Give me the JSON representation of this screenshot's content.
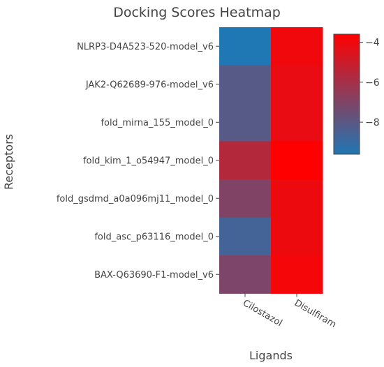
{
  "chart_data": {
    "type": "heatmap",
    "title": "Docking Scores Heatmap",
    "xlabel": "Ligands",
    "ylabel": "Receptors",
    "x": [
      "Cilostazol",
      "Disulfiram"
    ],
    "y": [
      "NLRP3-D4A523-520-model_v6",
      "JAK2-Q62689-976-model_v6",
      "fold_mirna_155_model_0",
      "fold_kim_1_o54947_model_0",
      "fold_gsdmd_a0a096mj11_model_0",
      "fold_asc_p63116_model_0",
      "BAX-Q63690-F1-model_v6"
    ],
    "z": [
      [
        -9.6,
        -4.0
      ],
      [
        -8.1,
        -4.2
      ],
      [
        -8.1,
        -4.2
      ],
      [
        -5.6,
        -3.6
      ],
      [
        -7.0,
        -4.1
      ],
      [
        -8.6,
        -4.1
      ],
      [
        -7.1,
        -3.9
      ]
    ],
    "zlim": [
      -9.6,
      -3.6
    ],
    "colorbar": {
      "ticks": [
        -4,
        -6,
        -8
      ]
    },
    "colorscale": [
      "#1f77b4",
      "#ff0000"
    ]
  }
}
